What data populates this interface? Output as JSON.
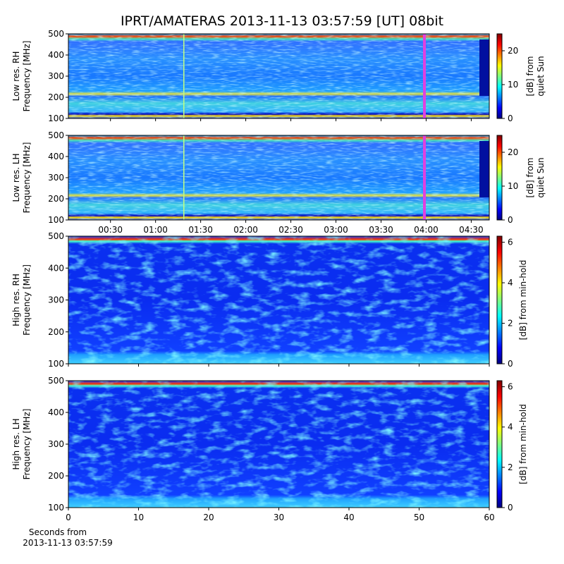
{
  "title": "IPRT/AMATERAS 2013-11-13 03:57:59 [UT]   08bit",
  "chart_data": [
    {
      "type": "spectrogram",
      "ylabel": [
        "Low res. RH",
        "Frequency [MHz]"
      ],
      "ylim": [
        100,
        500
      ],
      "yticks": [
        100,
        200,
        300,
        400,
        500
      ],
      "xlim": [
        "00:02",
        "04:42"
      ],
      "xticks": [
        "00:30",
        "01:00",
        "01:30",
        "02:00",
        "02:30",
        "03:00",
        "03:30",
        "04:00",
        "04:30"
      ],
      "show_xticklabels": false,
      "colormap": "jet",
      "clim": [
        0,
        25
      ],
      "cticks": [
        0,
        10,
        20
      ],
      "clabel": [
        "[dB] from",
        "quiet Sun"
      ]
    },
    {
      "type": "spectrogram",
      "ylabel": [
        "Low res. LH",
        "Frequency [MHz]"
      ],
      "ylim": [
        100,
        500
      ],
      "yticks": [
        100,
        200,
        300,
        400,
        500
      ],
      "xlim": [
        "00:02",
        "04:42"
      ],
      "xticks": [
        "00:30",
        "01:00",
        "01:30",
        "02:00",
        "02:30",
        "03:00",
        "03:30",
        "04:00",
        "04:30"
      ],
      "show_xticklabels": true,
      "colormap": "jet",
      "clim": [
        0,
        25
      ],
      "cticks": [
        0,
        10,
        20
      ],
      "clabel": [
        "[dB] from",
        "quiet Sun"
      ]
    },
    {
      "type": "spectrogram",
      "ylabel": [
        "High res. RH",
        "Frequency [MHz]"
      ],
      "ylim": [
        100,
        500
      ],
      "yticks": [
        100,
        200,
        300,
        400,
        500
      ],
      "xlim": [
        0,
        60
      ],
      "xticks": [
        0,
        10,
        20,
        30,
        40,
        50,
        60
      ],
      "show_xticklabels": false,
      "colormap": "jet",
      "clim": [
        0,
        6.3
      ],
      "cticks": [
        0,
        2,
        4,
        6
      ],
      "clabel": [
        "[dB] from min-hold"
      ]
    },
    {
      "type": "spectrogram",
      "ylabel": [
        "High res. LH",
        "Frequency [MHz]"
      ],
      "ylim": [
        100,
        500
      ],
      "yticks": [
        100,
        200,
        300,
        400,
        500
      ],
      "xlim": [
        0,
        60
      ],
      "xticks": [
        0,
        10,
        20,
        30,
        40,
        50,
        60
      ],
      "show_xticklabels": true,
      "xlabel": [
        "Seconds from",
        "2013-11-13 03:57:59"
      ],
      "colormap": "jet",
      "clim": [
        0,
        6.3
      ],
      "cticks": [
        0,
        2,
        4,
        6
      ],
      "clabel": [
        "[dB] from min-hold"
      ]
    }
  ]
}
